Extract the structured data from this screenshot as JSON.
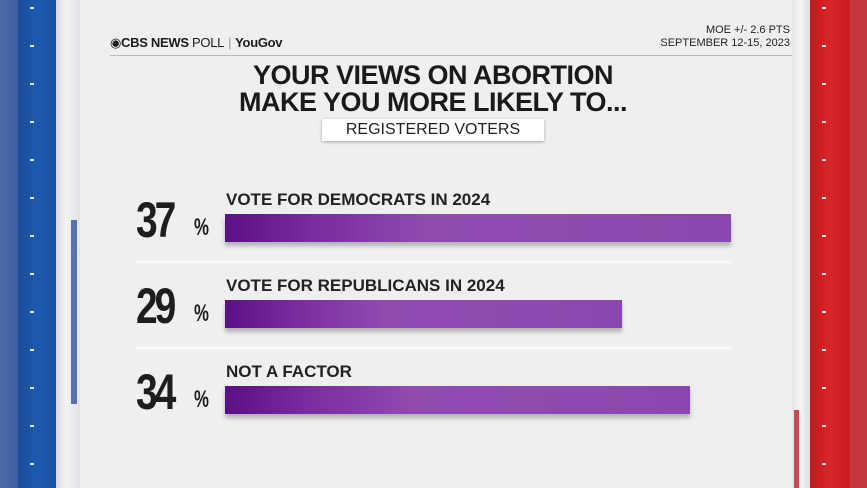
{
  "header": {
    "brand_cbs": "CBS NEWS",
    "brand_poll": "POLL",
    "brand_partner": "YouGov",
    "moe": "MOE +/- 2.6 PTS",
    "dates": "SEPTEMBER 12-15, 2023"
  },
  "colors": {
    "bar": "#8a48ae",
    "bar_dark": "#5c0f86",
    "left_rail": "#1d5bb0",
    "right_rail": "#d8262a"
  },
  "chart_data": {
    "type": "bar",
    "orientation": "horizontal",
    "title_line1": "YOUR VIEWS ON ABORTION",
    "title_line2": "MAKE YOU MORE LIKELY TO...",
    "subtitle": "REGISTERED VOTERS",
    "categories": [
      "VOTE FOR DEMOCRATS IN 2024",
      "VOTE FOR REPUBLICANS IN 2024",
      "NOT A FACTOR"
    ],
    "values": [
      37,
      29,
      34
    ],
    "value_labels": [
      "37",
      "29",
      "34"
    ],
    "unit": "%"
  }
}
